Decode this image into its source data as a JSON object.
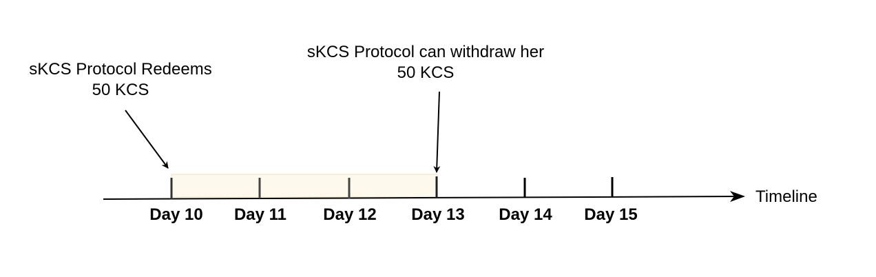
{
  "annotations": {
    "redeem": {
      "line1": "sKCS Protocol Redeems",
      "line2": "50 KCS"
    },
    "withdraw": {
      "line1": "sKCS Protocol can withdraw her",
      "line2": "50 KCS"
    }
  },
  "timeline": {
    "axis_label": "Timeline",
    "days": [
      "Day 10",
      "Day 11",
      "Day 12",
      "Day 13",
      "Day 14",
      "Day 15"
    ],
    "highlight": {
      "from": "Day 10",
      "to": "Day 13"
    }
  },
  "colors": {
    "line": "#000000",
    "highlight_fill": "#fdf9ec",
    "highlight_border": "#f0e3b8",
    "tick_in_highlight": "#444444"
  }
}
